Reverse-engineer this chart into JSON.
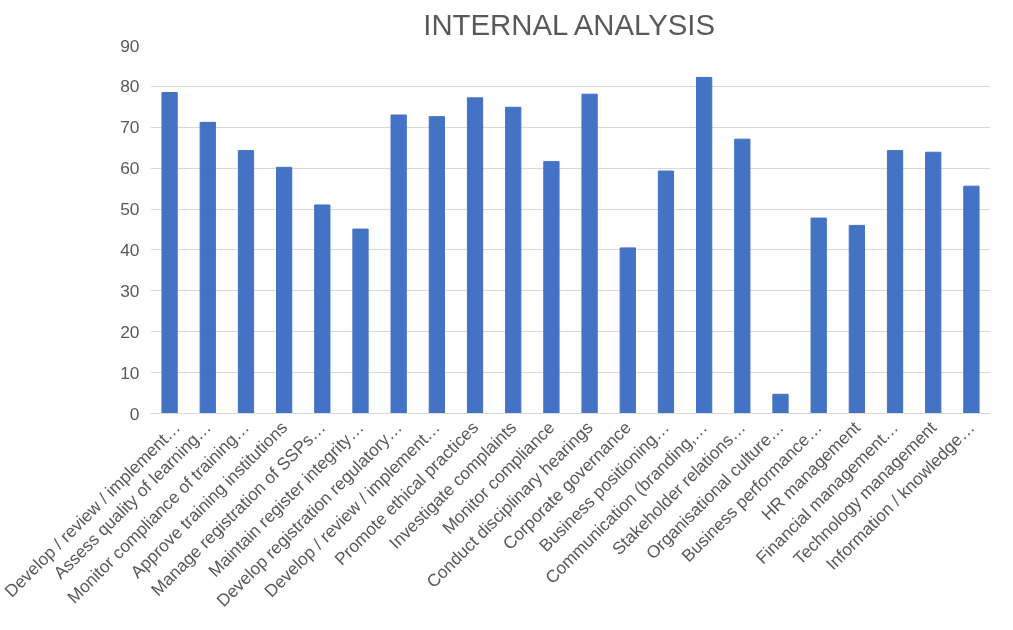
{
  "chart_data": {
    "type": "bar",
    "title": "INTERNAL ANALYSIS",
    "categories": [
      "Develop / review / implement…",
      "Assess quality of learning…",
      "Monitor compliance of training…",
      "Approve training institutions",
      "Manage registration of SSPs…",
      "Maintain register integrity…",
      "Develop registration regulatory…",
      "Develop / review / implement…",
      "Promote ethical practices",
      "Investigate complaints",
      "Monitor compliance",
      "Conduct disciplinary hearings",
      "Corporate governance",
      "Business positioning…",
      "Communication (branding,…",
      "Stakeholder relations…",
      "Organisational culture…",
      "Business performance…",
      "HR management",
      "Financial management…",
      "Technology management",
      "Information / knowledge…"
    ],
    "values": [
      78.5,
      71.2,
      64.3,
      60.2,
      51.0,
      45.1,
      73.0,
      72.6,
      77.2,
      74.9,
      61.6,
      78.1,
      40.5,
      59.3,
      82.2,
      67.1,
      4.7,
      47.8,
      46.0,
      64.3,
      63.9,
      55.6
    ],
    "color": "#4472c4",
    "ylim": [
      0,
      90
    ],
    "yticks": [
      0,
      10,
      20,
      30,
      40,
      50,
      60,
      70,
      80,
      90
    ],
    "grid": "y"
  }
}
